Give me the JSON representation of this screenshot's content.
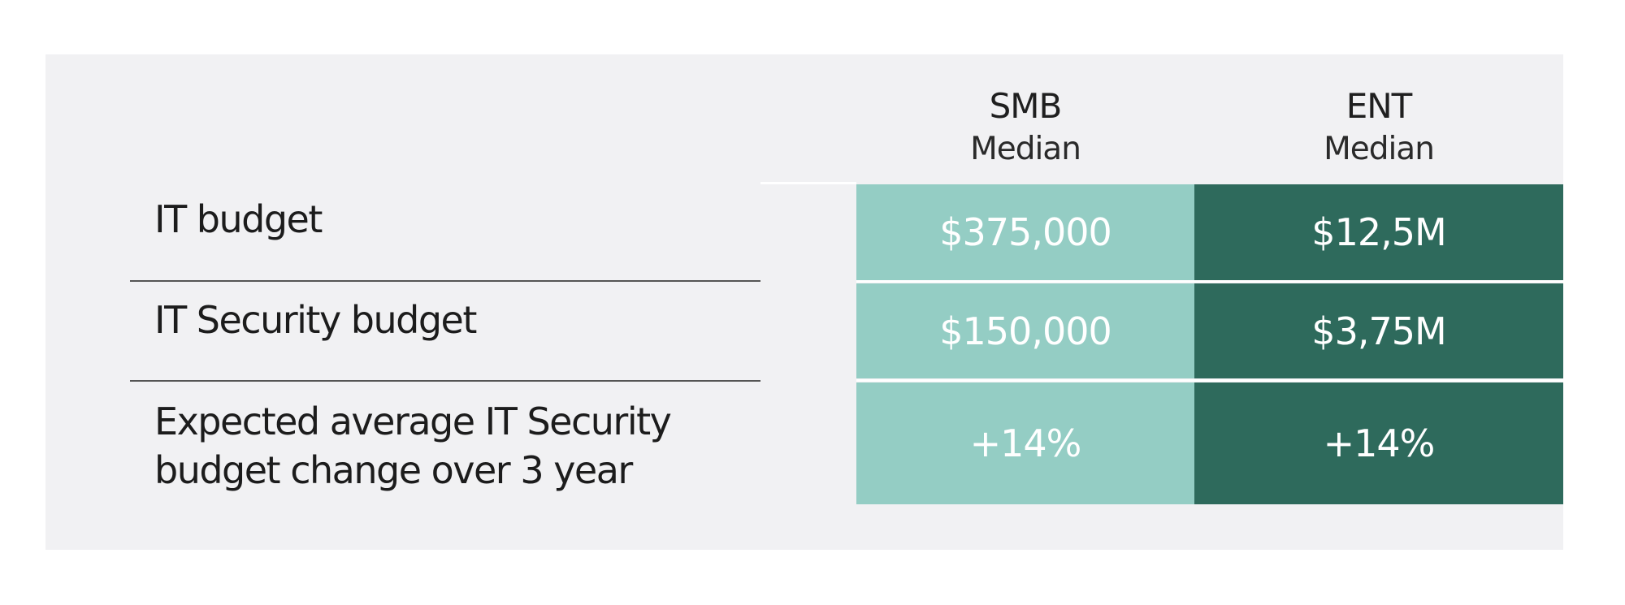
{
  "chart_data": {
    "type": "table",
    "columns": [
      {
        "name": "SMB",
        "sub": "Median",
        "color": "#94cdc4"
      },
      {
        "name": "ENT",
        "sub": "Median",
        "color": "#2e6a5c"
      }
    ],
    "rows": [
      {
        "label": "IT budget",
        "values": [
          "$375,000",
          "$12,5M"
        ]
      },
      {
        "label": "IT Security budget",
        "values": [
          "$150,000",
          "$3,75M"
        ]
      },
      {
        "label": "Expected average IT Security budget change over 3 year",
        "values": [
          "+14%",
          "+14%"
        ]
      }
    ]
  }
}
